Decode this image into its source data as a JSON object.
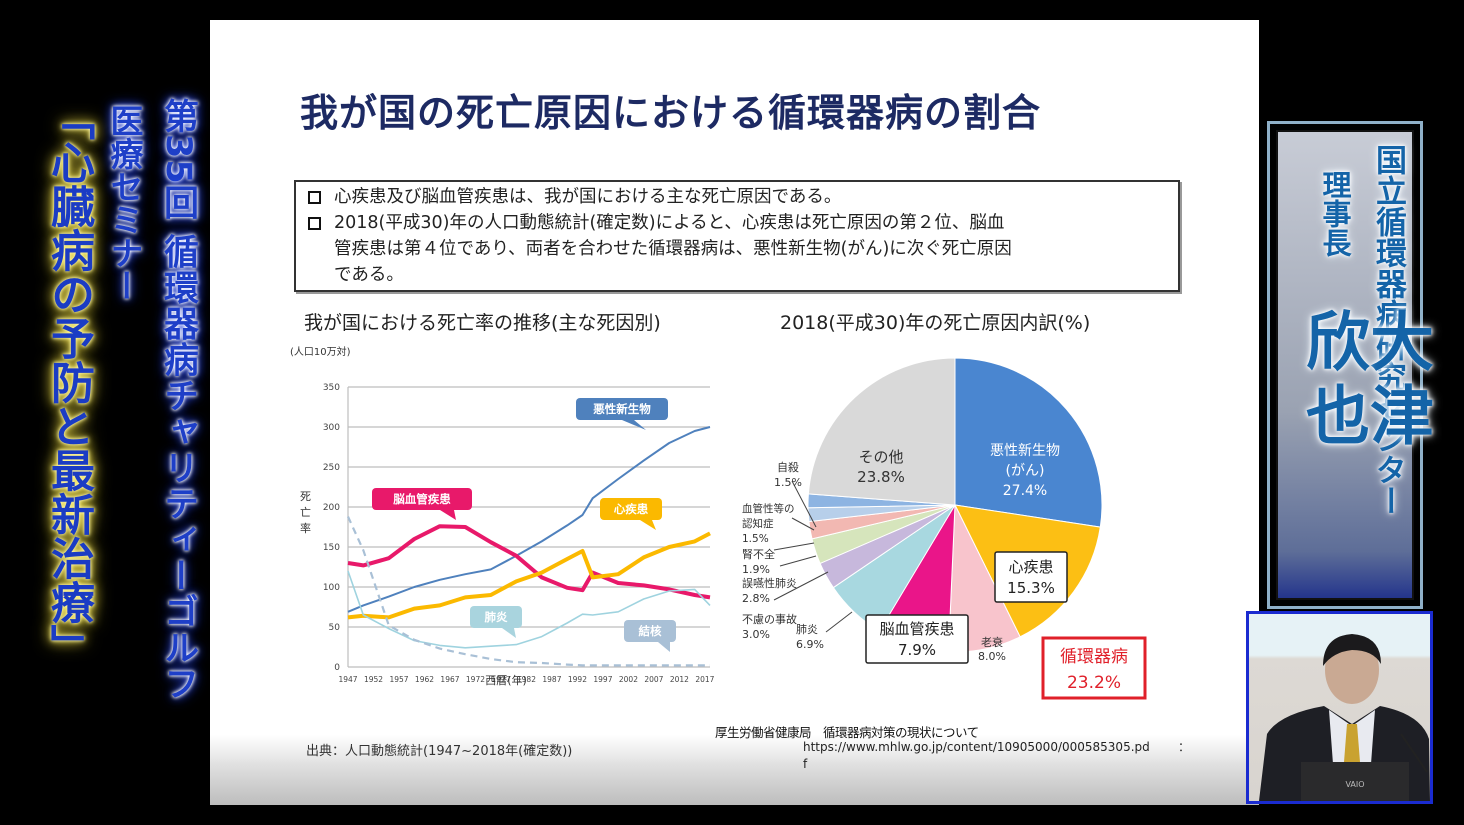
{
  "banner": {
    "line1": "第35回 循環器病チャリティーゴルフ",
    "line2": "医療セミナー",
    "line3": "「心臓病の予防と最新治療」"
  },
  "slide": {
    "title": "我が国の死亡原因における循環器病の割合",
    "bullets": [
      "心疾患及び脳血管疾患は、我が国における主な死亡原因である。",
      "2018(平成30)年の人口動態統計(確定数)によると、心疾患は死亡原因の第２位、脳血",
      "管疾患は第４位であり、両者を合わせた循環器病は、悪性新生物(がん)に次ぐ死亡原因",
      "である。"
    ],
    "source": "出典：人口動態統計(1947~2018年(確定数))",
    "reference": {
      "line1": "厚生労働省健康局　循環器病対策の現状について",
      "url_line1": "https://www.mhlw.go.jp/content/10905000/000585305.pd",
      "url_line2": "f",
      "trailing": "："
    }
  },
  "speaker": {
    "organization": "国立循環器病研究センター",
    "role": "理事長",
    "name": "大津　欣也"
  },
  "chart_data": [
    {
      "type": "line",
      "title": "我が国における死亡率の推移(主な死因別)",
      "ylabel": "死亡率",
      "yunit": "(人口10万対)",
      "xlabel": "西暦(年)",
      "ylim": [
        0,
        350
      ],
      "yticks": [
        0,
        50,
        100,
        150,
        200,
        250,
        300,
        350
      ],
      "xticks": [
        1947,
        1952,
        1957,
        1962,
        1967,
        1972,
        1977,
        1982,
        1987,
        1992,
        1997,
        2002,
        2007,
        2012,
        2017
      ],
      "grid": true,
      "x": [
        1947,
        1950,
        1955,
        1960,
        1965,
        1970,
        1975,
        1980,
        1985,
        1990,
        1993,
        1995,
        2000,
        2005,
        2010,
        2015,
        2018
      ],
      "series": [
        {
          "name": "悪性新生物",
          "color": "#4f81bd",
          "dashed": false,
          "values": [
            69,
            77,
            88,
            100,
            109,
            116,
            122,
            139,
            157,
            177,
            190,
            211,
            235,
            258,
            280,
            295,
            300
          ]
        },
        {
          "name": "脳血管疾患",
          "color": "#e8196a",
          "dashed": false,
          "values": [
            130,
            127,
            136,
            160,
            176,
            175,
            156,
            139,
            112,
            99,
            96,
            118,
            105,
            102,
            97,
            90,
            87
          ]
        },
        {
          "name": "心疾患",
          "color": "#fbb900",
          "dashed": false,
          "values": [
            62,
            64,
            62,
            73,
            77,
            87,
            90,
            107,
            118,
            135,
            145,
            112,
            116,
            137,
            150,
            157,
            167
          ]
        },
        {
          "name": "肺炎",
          "color": "#9fd3df",
          "dashed": false,
          "values": [
            120,
            65,
            48,
            33,
            27,
            24,
            26,
            28,
            38,
            55,
            66,
            65,
            69,
            85,
            95,
            97,
            77
          ]
        },
        {
          "name": "結核",
          "color": "#a9c0d6",
          "dashed": true,
          "values": [
            188,
            146,
            52,
            34,
            23,
            16,
            10,
            6,
            5,
            3,
            2,
            2,
            2,
            2,
            2,
            2,
            2
          ]
        }
      ],
      "annotations": [
        "悪性新生物",
        "脳血管疾患",
        "心疾患",
        "肺炎",
        "結核"
      ]
    },
    {
      "type": "pie",
      "title": "2018(平成30)年の死亡原因内訳(%)",
      "slices": [
        {
          "label": "悪性新生物(がん)",
          "value": 27.4,
          "color": "#4a86d0"
        },
        {
          "label": "心疾患",
          "value": 15.3,
          "color": "#fcbf14"
        },
        {
          "label": "老衰",
          "value": 8.0,
          "color": "#f8c4cc"
        },
        {
          "label": "脳血管疾患",
          "value": 7.9,
          "color": "#ea1589"
        },
        {
          "label": "肺炎",
          "value": 6.9,
          "color": "#a8d8e0"
        },
        {
          "label": "不慮の事故",
          "value": 3.0,
          "color": "#c7b8dc"
        },
        {
          "label": "誤嚥性肺炎",
          "value": 2.8,
          "color": "#d6e5bc"
        },
        {
          "label": "腎不全",
          "value": 1.9,
          "color": "#f2b8b2"
        },
        {
          "label": "血管性等の認知症",
          "value": 1.5,
          "color": "#b7cfea"
        },
        {
          "label": "自殺",
          "value": 1.5,
          "color": "#8db4e2"
        },
        {
          "label": "その他",
          "value": 23.8,
          "color": "#d9d9d9"
        }
      ],
      "callout": {
        "label": "循環器病",
        "value": "23.2%",
        "color": "#e0202a"
      }
    }
  ]
}
